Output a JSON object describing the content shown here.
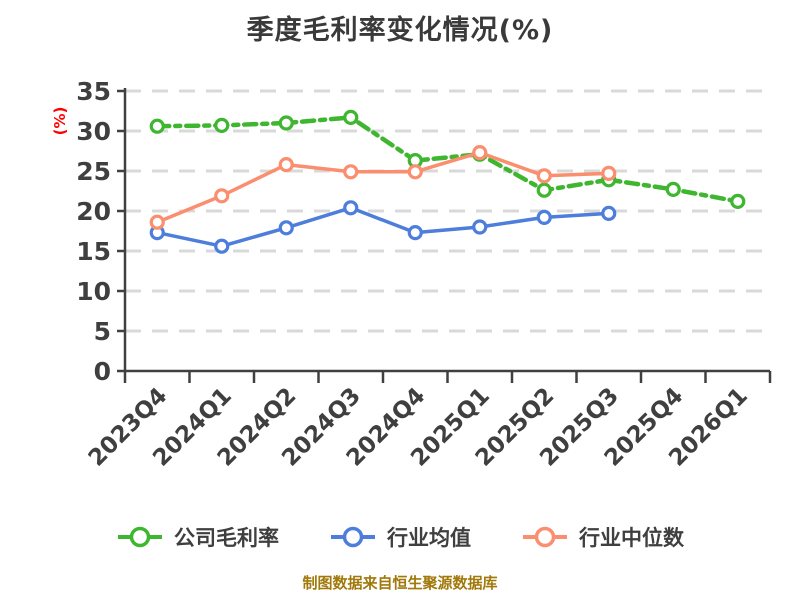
{
  "title": "季度毛利率变化情况(%)",
  "y_axis_unit": "(%)",
  "footer": "制图数据来自恒生聚源数据库",
  "colors": {
    "background": "#FFFFFF",
    "title": "#3A3A3A",
    "tick_label": "#3F3F3F",
    "unit_label": "#FF0000",
    "footer": "#A1780A",
    "grid": "#D9D9D9",
    "axis": "#404040",
    "marker_fill": "#FFFFFF"
  },
  "chart_data": {
    "type": "line",
    "title": "季度毛利率变化情况(%)",
    "xlabel": "",
    "ylabel": "(%)",
    "ylim": [
      0,
      35
    ],
    "ytick_step": 5,
    "yticks": [
      0,
      5,
      10,
      15,
      20,
      25,
      30,
      35
    ],
    "grid": true,
    "grid_style": "dashed",
    "legend_position": "bottom",
    "x_label_rotation": 45,
    "categories": [
      "2023Q4",
      "2024Q1",
      "2024Q2",
      "2024Q3",
      "2024Q4",
      "2025Q1",
      "2025Q2",
      "2025Q3",
      "2025Q4",
      "2026Q1"
    ],
    "series": [
      {
        "name": "公司毛利率",
        "color": "#3FB62F",
        "line_style": "dashed",
        "marker": "circle",
        "values": [
          30.6,
          30.7,
          31.0,
          31.7,
          26.3,
          27.1,
          22.6,
          23.9,
          22.7,
          21.2
        ]
      },
      {
        "name": "行业均值",
        "color": "#4D7EDB",
        "line_style": "solid",
        "marker": "circle",
        "values": [
          17.3,
          15.6,
          17.9,
          20.4,
          17.3,
          18.0,
          19.2,
          19.7,
          null,
          null
        ]
      },
      {
        "name": "行业中位数",
        "color": "#FA8E6E",
        "line_style": "solid",
        "marker": "circle",
        "values": [
          18.6,
          21.9,
          25.8,
          24.9,
          24.9,
          27.3,
          24.4,
          24.7,
          null,
          null
        ]
      }
    ]
  }
}
